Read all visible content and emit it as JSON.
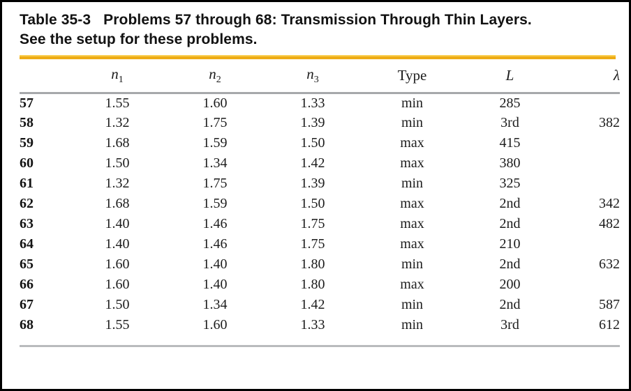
{
  "table": {
    "title_label": "Table 35-3",
    "title_text": "Problems 57 through 68: Transmission Through Thin Layers.",
    "subtitle": "See the setup for these problems.",
    "columns": [
      {
        "id": "n1",
        "base": "n",
        "sub": "1"
      },
      {
        "id": "n2",
        "base": "n",
        "sub": "2"
      },
      {
        "id": "n3",
        "base": "n",
        "sub": "3"
      },
      {
        "id": "type",
        "base": "Type",
        "sub": ""
      },
      {
        "id": "L",
        "base": "L",
        "sub": ""
      },
      {
        "id": "lambda",
        "base": "λ",
        "sub": ""
      }
    ],
    "rows": [
      {
        "id": "57",
        "n1": "1.55",
        "n2": "1.60",
        "n3": "1.33",
        "type": "min",
        "L": "285",
        "lambda": ""
      },
      {
        "id": "58",
        "n1": "1.32",
        "n2": "1.75",
        "n3": "1.39",
        "type": "min",
        "L": "3rd",
        "lambda": "382"
      },
      {
        "id": "59",
        "n1": "1.68",
        "n2": "1.59",
        "n3": "1.50",
        "type": "max",
        "L": "415",
        "lambda": ""
      },
      {
        "id": "60",
        "n1": "1.50",
        "n2": "1.34",
        "n3": "1.42",
        "type": "max",
        "L": "380",
        "lambda": ""
      },
      {
        "id": "61",
        "n1": "1.32",
        "n2": "1.75",
        "n3": "1.39",
        "type": "min",
        "L": "325",
        "lambda": ""
      },
      {
        "id": "62",
        "n1": "1.68",
        "n2": "1.59",
        "n3": "1.50",
        "type": "max",
        "L": "2nd",
        "lambda": "342"
      },
      {
        "id": "63",
        "n1": "1.40",
        "n2": "1.46",
        "n3": "1.75",
        "type": "max",
        "L": "2nd",
        "lambda": "482"
      },
      {
        "id": "64",
        "n1": "1.40",
        "n2": "1.46",
        "n3": "1.75",
        "type": "max",
        "L": "210",
        "lambda": ""
      },
      {
        "id": "65",
        "n1": "1.60",
        "n2": "1.40",
        "n3": "1.80",
        "type": "min",
        "L": "2nd",
        "lambda": "632"
      },
      {
        "id": "66",
        "n1": "1.60",
        "n2": "1.40",
        "n3": "1.80",
        "type": "max",
        "L": "200",
        "lambda": ""
      },
      {
        "id": "67",
        "n1": "1.50",
        "n2": "1.34",
        "n3": "1.42",
        "type": "min",
        "L": "2nd",
        "lambda": "587"
      },
      {
        "id": "68",
        "n1": "1.55",
        "n2": "1.60",
        "n3": "1.33",
        "type": "min",
        "L": "3rd",
        "lambda": "612"
      }
    ],
    "colors": {
      "accent_gold": "#EEAC15",
      "header_rule_gray": "#A6A8AB",
      "bottom_rule_gray": "#B9BBBD",
      "text": "#1C1C1C",
      "frame_border": "#000000"
    }
  }
}
